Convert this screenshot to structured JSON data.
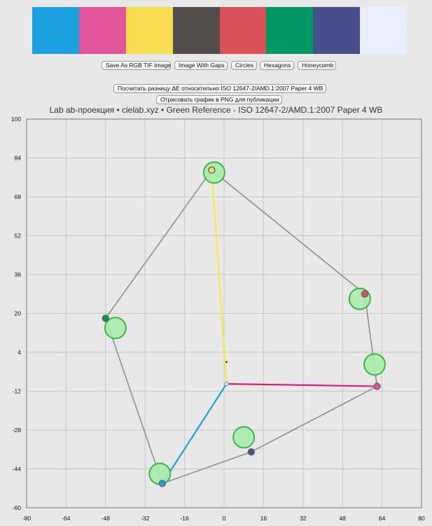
{
  "swatches": [
    "#1ba1e2",
    "#e2559a",
    "#f6de4f",
    "#514d4d",
    "#dc5057",
    "#009966",
    "#484e8a",
    "#ebeefc"
  ],
  "buttons": {
    "save_tif": "Save As RGB TIF Image",
    "image_gaps": "Image With Gaps",
    "circles": "Circles",
    "hexagons": "Hexagons",
    "honeycomb": "Honeycomb",
    "calc_delta": "Посчитать разницу ΔE относительно ISO 12647-2/AMD.1:2007 Paper 4 WB",
    "render_png": "Отрисовать график в PNG для публикации"
  },
  "chart_data": {
    "type": "scatter",
    "title": "Lab ab-проекция  •  cielab.xyz  •  Green Reference - ISO 12647-2/AMD.1:2007 Paper 4 WB",
    "xlim": [
      -80,
      80
    ],
    "ylim": [
      -60,
      100
    ],
    "x_ticks": [
      -80,
      -64,
      -48,
      -32,
      -16,
      0,
      16,
      32,
      48,
      64,
      80
    ],
    "y_ticks": [
      100,
      84,
      68,
      52,
      36,
      20,
      4,
      -12,
      -28,
      -44,
      -60
    ],
    "grid": true,
    "measured_points": [
      {
        "a": -5,
        "b": 79,
        "color": "#f6de4f"
      },
      {
        "a": 57,
        "b": 28,
        "color": "#dc5057"
      },
      {
        "a": 62,
        "b": -10,
        "color": "#e2559a"
      },
      {
        "a": 11,
        "b": -37,
        "color": "#484e8a"
      },
      {
        "a": -25,
        "b": -50,
        "color": "#1ba1e2"
      },
      {
        "a": -48,
        "b": 18,
        "color": "#009966"
      }
    ],
    "reference_points": [
      {
        "a": -4,
        "b": 78
      },
      {
        "a": 55,
        "b": 26
      },
      {
        "a": 61,
        "b": -1
      },
      {
        "a": 8,
        "b": -31
      },
      {
        "a": -26,
        "b": -46
      },
      {
        "a": -44,
        "b": 14
      }
    ],
    "paper_white": {
      "a": 1,
      "b": -9
    },
    "neutral_mark": {
      "a": 1,
      "b": 0
    },
    "vectors": [
      {
        "to": {
          "a": -5,
          "b": 79
        },
        "color": "#f6e940"
      },
      {
        "to": {
          "a": 62,
          "b": -10
        },
        "color": "#e2187a"
      },
      {
        "to": {
          "a": -25,
          "b": -50
        },
        "color": "#1ba1e2"
      }
    ],
    "colors": {
      "hull": "#8f8f8f",
      "reference_fill": "#a8ecac",
      "reference_stroke": "#3cb44a",
      "grid": "#c8c8c8",
      "frame": "#9a9a9a"
    }
  }
}
